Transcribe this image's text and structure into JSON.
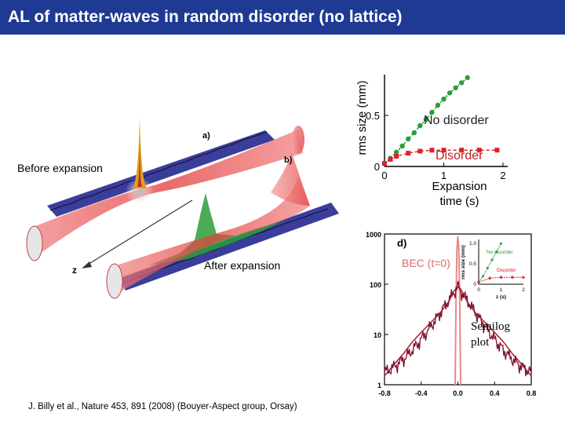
{
  "title": "AL of matter-waves in random disorder (no lattice)",
  "labels": {
    "before": "Before expansion",
    "after": "After expansion",
    "semilog_line1": "Semilog",
    "semilog_line2": "plot",
    "citation": "J. Billy et al., Nature 453, 891 (2008) (Bouyer-Aspect group, Orsay)"
  },
  "illustration": {
    "panel_a": "a)",
    "panel_b": "b)",
    "axis_label": "z"
  },
  "colors": {
    "title_bar": "#1f3a93",
    "no_disorder": "#2a9d3a",
    "disorder": "#e0202a",
    "profile": "#7a1030"
  },
  "chart_data": [
    {
      "type": "line",
      "xlabel": "Expansion time (s)",
      "ylabel": "rms size (mm)",
      "xlim": [
        0,
        2
      ],
      "ylim": [
        0,
        0.9
      ],
      "x_ticks": [
        "0",
        "1",
        "2"
      ],
      "y_ticks": [
        "0",
        "0.5"
      ],
      "series": [
        {
          "name": "No disorder",
          "x": [
            0,
            0.1,
            0.2,
            0.3,
            0.4,
            0.5,
            0.6,
            0.7,
            0.8,
            0.9,
            1.0,
            1.1,
            1.2,
            1.3,
            1.4
          ],
          "y": [
            0.03,
            0.08,
            0.14,
            0.2,
            0.27,
            0.33,
            0.4,
            0.46,
            0.53,
            0.6,
            0.66,
            0.72,
            0.77,
            0.82,
            0.87
          ]
        },
        {
          "name": "Disorder",
          "x": [
            0,
            0.1,
            0.2,
            0.4,
            0.6,
            0.8,
            1.0,
            1.3,
            1.6,
            1.9
          ],
          "y": [
            0.03,
            0.07,
            0.1,
            0.13,
            0.15,
            0.16,
            0.16,
            0.16,
            0.16,
            0.16
          ]
        }
      ]
    },
    {
      "type": "line",
      "panel_label": "d)",
      "annotation": "BEC (t=0)",
      "log_y": true,
      "xlim": [
        -0.8,
        0.8
      ],
      "ylim": [
        1,
        1000
      ],
      "x_ticks": [
        "-0.8",
        "-0.4",
        "0.0",
        "0.4",
        "0.8"
      ],
      "y_ticks": [
        "1",
        "10",
        "100",
        "1000"
      ],
      "series": [
        {
          "name": "profile",
          "x": [
            -0.8,
            -0.7,
            -0.6,
            -0.5,
            -0.4,
            -0.3,
            -0.2,
            -0.1,
            -0.05,
            0,
            0.05,
            0.1,
            0.2,
            0.3,
            0.4,
            0.5,
            0.6,
            0.7,
            0.8
          ],
          "y": [
            1.5,
            2.5,
            4,
            7,
            11,
            17,
            26,
            45,
            70,
            90,
            70,
            45,
            26,
            17,
            11,
            7,
            4,
            2.5,
            1.5
          ]
        },
        {
          "name": "BEC (t=0)",
          "x": [
            -0.03,
            -0.02,
            -0.01,
            0,
            0.01,
            0.02,
            0.03
          ],
          "y": [
            1,
            50,
            500,
            900,
            500,
            50,
            1
          ]
        }
      ],
      "inset": {
        "xlabel": "z (s)",
        "ylabel": "rms size (mm)",
        "x_ticks": [
          "0",
          "1",
          "2"
        ],
        "y_ticks": [
          "0",
          "0.5",
          "1.0"
        ],
        "series": [
          {
            "name": "No disorder",
            "x": [
              0,
              0.2,
              0.4,
              0.6,
              0.8,
              1.0
            ],
            "y": [
              0.05,
              0.2,
              0.4,
              0.6,
              0.8,
              1.0
            ]
          },
          {
            "name": "Disorder",
            "x": [
              0,
              0.5,
              1.0,
              1.5,
              2.0
            ],
            "y": [
              0.05,
              0.15,
              0.17,
              0.17,
              0.17
            ]
          }
        ]
      }
    }
  ]
}
